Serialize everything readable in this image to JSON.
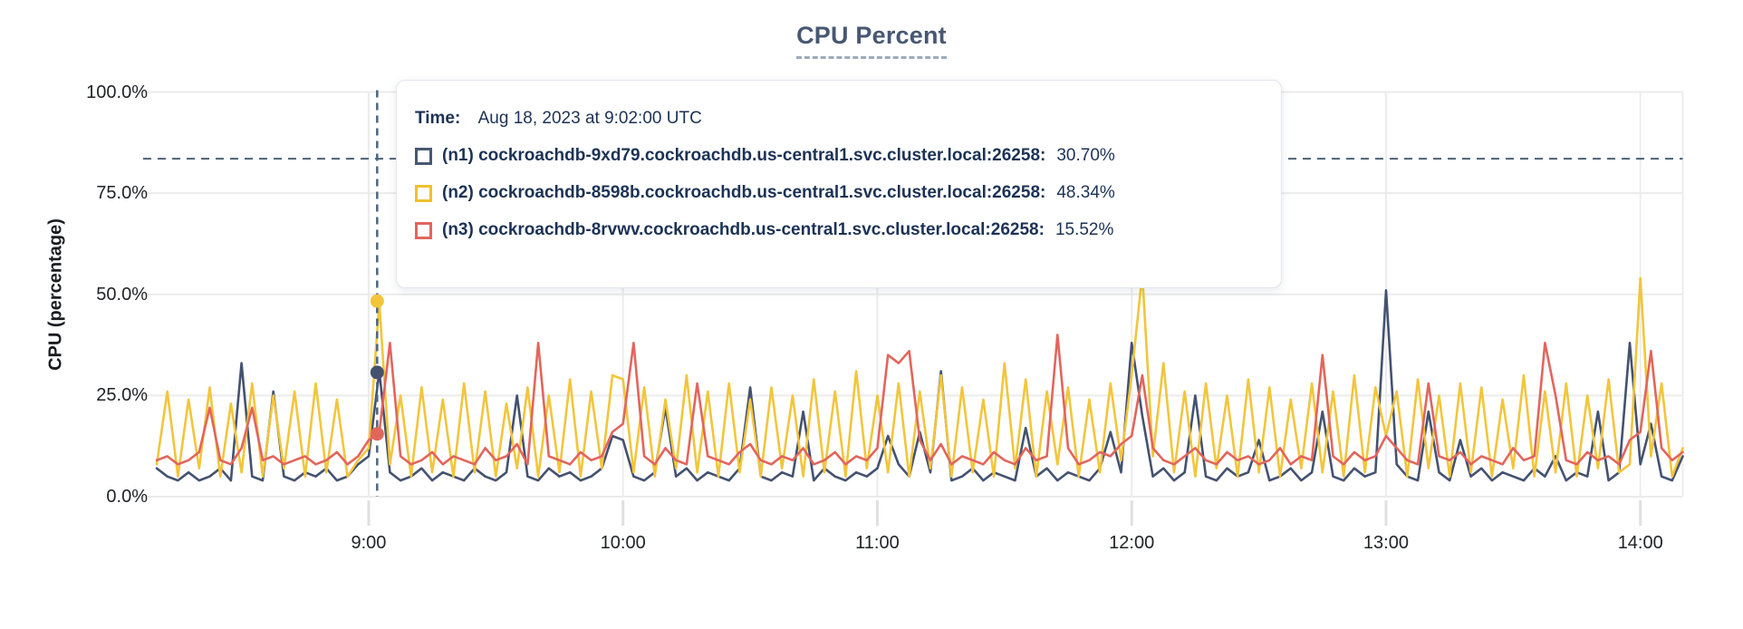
{
  "title": "CPU Percent",
  "y_axis": {
    "label": "CPU (percentage)",
    "ticks": [
      "100.0%",
      "75.0%",
      "50.0%",
      "25.0%",
      "0.0%"
    ],
    "tick_values": [
      100,
      75,
      50,
      25,
      0
    ]
  },
  "x_axis": {
    "ticks": [
      "9:00",
      "10:00",
      "11:00",
      "12:00",
      "13:00",
      "14:00"
    ],
    "tick_minutes": [
      50,
      110,
      170,
      230,
      290,
      350
    ]
  },
  "tooltip": {
    "time_label": "Time:",
    "time_value": "Aug 18, 2023 at 9:02:00 UTC",
    "rows": [
      {
        "name": "(n1) cockroachdb-9xd79.cockroachdb.us-central1.svc.cluster.local:26258:",
        "value": "30.70%",
        "color": "#475872"
      },
      {
        "name": "(n2) cockroachdb-8598b.cockroachdb.us-central1.svc.cluster.local:26258:",
        "value": "48.34%",
        "color": "#efc12e"
      },
      {
        "name": "(n3) cockroachdb-8rvwv.cockroachdb.us-central1.svc.cluster.local:26258:",
        "value": "15.52%",
        "color": "#e2655c"
      }
    ]
  },
  "colors": {
    "grid": "#ebebeb",
    "grid_vertical": "#ececec",
    "tick_mark": "#e0e0e0",
    "threshold_dash": "#4d6175",
    "hover_dash": "#4d6580",
    "title": "#475872",
    "tooltip_text": "#1c3255"
  },
  "chart_data": {
    "type": "line",
    "title": "CPU Percent",
    "xlabel": "",
    "ylabel": "CPU (percentage)",
    "ylim": [
      0,
      100
    ],
    "x_start": "8:10",
    "x_end": "14:10",
    "interval_min": 2.5,
    "grid": true,
    "threshold_value": 83.5,
    "hover": {
      "time": "9:02:00 UTC",
      "minute_from_start": 52,
      "values": [
        30.7,
        48.34,
        15.52
      ]
    },
    "series": [
      {
        "name": "(n1) cockroachdb-9xd79.cockroachdb.us-central1.svc.cluster.local:26258",
        "color": "#445270",
        "hover_value": 30.7,
        "values": [
          7,
          5,
          4,
          6,
          4,
          5,
          7,
          4,
          33,
          5,
          4,
          26,
          5,
          4,
          6,
          5,
          7,
          4,
          5,
          8,
          10,
          31,
          6,
          4,
          5,
          7,
          4,
          6,
          5,
          4,
          7,
          5,
          4,
          6,
          25,
          5,
          4,
          7,
          5,
          6,
          4,
          5,
          7,
          15,
          14,
          5,
          4,
          6,
          22,
          5,
          7,
          4,
          6,
          5,
          4,
          7,
          27,
          5,
          4,
          6,
          5,
          21,
          4,
          7,
          5,
          4,
          6,
          5,
          7,
          15,
          8,
          5,
          16,
          6,
          31,
          4,
          5,
          7,
          4,
          6,
          5,
          4,
          17,
          5,
          7,
          4,
          6,
          5,
          4,
          7,
          16,
          6,
          38,
          20,
          5,
          7,
          4,
          6,
          25,
          5,
          4,
          7,
          5,
          6,
          14,
          4,
          5,
          7,
          4,
          6,
          21,
          5,
          4,
          7,
          5,
          6,
          51,
          8,
          5,
          4,
          21,
          6,
          4,
          14,
          5,
          7,
          4,
          6,
          5,
          4,
          7,
          5,
          10,
          4,
          6,
          5,
          21,
          4,
          6,
          38,
          8,
          18,
          5,
          4,
          10
        ]
      },
      {
        "name": "(n2) cockroachdb-8598b.cockroachdb.us-central1.svc.cluster.local:26258",
        "color": "#f2c53c",
        "hover_value": 48.34,
        "values": [
          8,
          26,
          5,
          24,
          7,
          27,
          5,
          23,
          6,
          28,
          5,
          25,
          7,
          26,
          5,
          28,
          6,
          24,
          5,
          9,
          12,
          48,
          8,
          25,
          5,
          27,
          6,
          24,
          5,
          28,
          6,
          26,
          5,
          23,
          7,
          27,
          5,
          25,
          6,
          29,
          5,
          26,
          7,
          30,
          29,
          6,
          27,
          5,
          24,
          7,
          30,
          6,
          26,
          5,
          28,
          6,
          24,
          5,
          27,
          7,
          25,
          5,
          29,
          6,
          26,
          5,
          31,
          7,
          25,
          6,
          28,
          5,
          26,
          7,
          30,
          5,
          27,
          6,
          24,
          5,
          33,
          7,
          29,
          5,
          26,
          8,
          27,
          5,
          24,
          6,
          28,
          9,
          30,
          55,
          10,
          33,
          6,
          26,
          5,
          28,
          7,
          25,
          5,
          29,
          6,
          27,
          5,
          24,
          7,
          28,
          6,
          26,
          5,
          30,
          6,
          27,
          15,
          26,
          5,
          29,
          7,
          25,
          5,
          28,
          6,
          27,
          5,
          24,
          7,
          30,
          5,
          26,
          6,
          28,
          5,
          25,
          7,
          29,
          6,
          8,
          54,
          10,
          28,
          5,
          12
        ]
      },
      {
        "name": "(n3) cockroachdb-8rvwv.cockroachdb.us-central1.svc.cluster.local:26258",
        "color": "#e2655c",
        "hover_value": 15.52,
        "values": [
          9,
          10,
          8,
          9,
          11,
          22,
          9,
          8,
          12,
          22,
          9,
          10,
          8,
          9,
          10,
          8,
          9,
          11,
          8,
          10,
          14,
          16,
          38,
          10,
          8,
          9,
          11,
          8,
          10,
          9,
          8,
          12,
          9,
          10,
          13,
          8,
          38,
          10,
          9,
          8,
          11,
          9,
          10,
          16,
          18,
          38,
          10,
          8,
          12,
          9,
          8,
          28,
          10,
          9,
          8,
          11,
          13,
          9,
          8,
          10,
          9,
          12,
          8,
          9,
          11,
          8,
          10,
          9,
          12,
          35,
          33,
          36,
          14,
          9,
          13,
          8,
          10,
          9,
          8,
          11,
          9,
          8,
          12,
          9,
          10,
          40,
          12,
          8,
          9,
          11,
          10,
          13,
          15,
          30,
          12,
          9,
          8,
          10,
          12,
          9,
          8,
          11,
          9,
          10,
          8,
          9,
          12,
          8,
          10,
          9,
          35,
          10,
          8,
          11,
          9,
          10,
          15,
          12,
          9,
          8,
          28,
          10,
          9,
          11,
          8,
          10,
          9,
          8,
          12,
          9,
          10,
          38,
          25,
          9,
          8,
          11,
          9,
          10,
          8,
          14,
          16,
          36,
          12,
          9,
          11
        ]
      }
    ]
  }
}
